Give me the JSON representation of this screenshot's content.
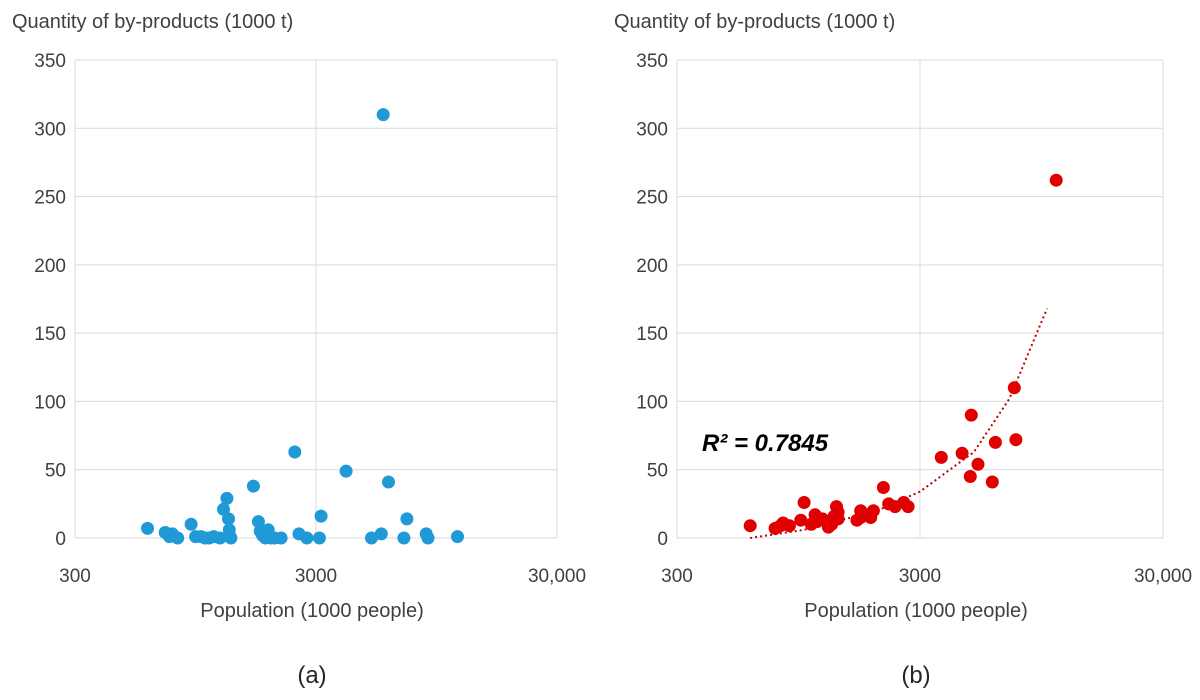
{
  "chart_data": [
    {
      "id": "a",
      "type": "scatter",
      "caption": "(a)",
      "title": "",
      "ylabel": "Quantity of by-products (1000 t)",
      "xlabel": "Population (1000 people)",
      "xscale": "log",
      "xlim": [
        300,
        30000
      ],
      "ylim": [
        0,
        350
      ],
      "xticks": [
        300,
        3000,
        30000
      ],
      "xtick_labels": [
        "300",
        "3000",
        "30,000"
      ],
      "yticks": [
        0,
        50,
        100,
        150,
        200,
        250,
        300,
        350
      ],
      "ytick_labels": [
        "0",
        "50",
        "100",
        "150",
        "200",
        "250",
        "300",
        "350"
      ],
      "grid": true,
      "marker_color": "#1f9ad6",
      "series": [
        {
          "name": "by-products",
          "points": [
            [
              600,
              7
            ],
            [
              710,
              4
            ],
            [
              740,
              1
            ],
            [
              760,
              3
            ],
            [
              800,
              0
            ],
            [
              910,
              10
            ],
            [
              950,
              1
            ],
            [
              1000,
              1
            ],
            [
              1040,
              0
            ],
            [
              1080,
              0
            ],
            [
              1130,
              1
            ],
            [
              1200,
              0
            ],
            [
              1240,
              21
            ],
            [
              1280,
              29
            ],
            [
              1300,
              14
            ],
            [
              1310,
              6
            ],
            [
              1320,
              1
            ],
            [
              1330,
              0
            ],
            [
              1650,
              38
            ],
            [
              1730,
              12
            ],
            [
              1760,
              5
            ],
            [
              1800,
              2
            ],
            [
              1850,
              0
            ],
            [
              1900,
              6
            ],
            [
              1950,
              0
            ],
            [
              2020,
              0
            ],
            [
              2150,
              0
            ],
            [
              2450,
              63
            ],
            [
              2550,
              3
            ],
            [
              2750,
              0
            ],
            [
              3100,
              0
            ],
            [
              3150,
              16
            ],
            [
              4000,
              49
            ],
            [
              5100,
              0
            ],
            [
              5600,
              3
            ],
            [
              5700,
              310
            ],
            [
              6000,
              41
            ],
            [
              6950,
              0
            ],
            [
              7150,
              14
            ],
            [
              8600,
              3
            ],
            [
              8750,
              0
            ],
            [
              11600,
              1
            ]
          ]
        }
      ]
    },
    {
      "id": "b",
      "type": "scatter",
      "caption": "(b)",
      "title": "",
      "ylabel": "Quantity of by-products (1000 t)",
      "xlabel": "Population (1000 people)",
      "xscale": "log",
      "xlim": [
        300,
        30000
      ],
      "ylim": [
        0,
        350
      ],
      "xticks": [
        300,
        3000,
        30000
      ],
      "xtick_labels": [
        "300",
        "3000",
        "30,000"
      ],
      "yticks": [
        0,
        50,
        100,
        150,
        200,
        250,
        300,
        350
      ],
      "ytick_labels": [
        "0",
        "50",
        "100",
        "150",
        "200",
        "250",
        "300",
        "350"
      ],
      "grid": true,
      "marker_color": "#e00000",
      "annotation": "R² = 0.7845",
      "trendline": {
        "type": "power",
        "style": "dotted",
        "color": "#c00000",
        "points": [
          [
            600,
            0
          ],
          [
            1000,
            6
          ],
          [
            2000,
            20
          ],
          [
            3000,
            34
          ],
          [
            5000,
            63
          ],
          [
            7000,
            102
          ],
          [
            10000,
            168
          ]
        ]
      },
      "series": [
        {
          "name": "by-products",
          "points": [
            [
              600,
              9
            ],
            [
              760,
              7
            ],
            [
              800,
              9
            ],
            [
              820,
              11
            ],
            [
              870,
              9
            ],
            [
              970,
              13
            ],
            [
              1000,
              26
            ],
            [
              1070,
              10
            ],
            [
              1110,
              17
            ],
            [
              1130,
              12
            ],
            [
              1190,
              14
            ],
            [
              1260,
              8
            ],
            [
              1300,
              10
            ],
            [
              1330,
              16
            ],
            [
              1360,
              23
            ],
            [
              1380,
              19
            ],
            [
              1380,
              14
            ],
            [
              1650,
              13
            ],
            [
              1710,
              15
            ],
            [
              1710,
              20
            ],
            [
              1830,
              17
            ],
            [
              1880,
              15
            ],
            [
              1930,
              20
            ],
            [
              2120,
              37
            ],
            [
              2230,
              25
            ],
            [
              2370,
              23
            ],
            [
              2570,
              26
            ],
            [
              2680,
              23
            ],
            [
              3670,
              59
            ],
            [
              4470,
              62
            ],
            [
              4830,
              45
            ],
            [
              4880,
              90
            ],
            [
              5200,
              54
            ],
            [
              5950,
              41
            ],
            [
              6130,
              70
            ],
            [
              7330,
              110
            ],
            [
              7440,
              72
            ],
            [
              10900,
              262
            ]
          ]
        }
      ]
    }
  ]
}
